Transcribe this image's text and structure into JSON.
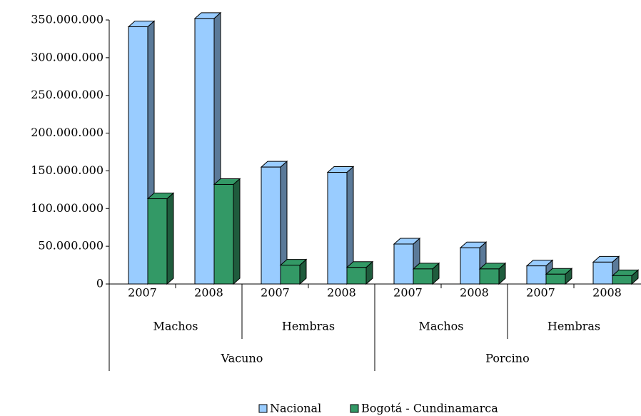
{
  "chart_data": {
    "type": "bar3d",
    "categories": [
      "2007",
      "2008",
      "2007",
      "2008",
      "2007",
      "2008",
      "2007",
      "2008"
    ],
    "category_levels": [
      [
        "Machos",
        "Hembras",
        "Machos",
        "Hembras"
      ],
      [
        "Vacuno",
        "Porcino"
      ]
    ],
    "series": [
      {
        "name": "Nacional",
        "color": "#99ccff",
        "side_color": "#5b7a99",
        "values": [
          341000000,
          352000000,
          155000000,
          148000000,
          53000000,
          48000000,
          24000000,
          29000000
        ]
      },
      {
        "name": "Bogotá - Cundinamarca",
        "color": "#339966",
        "side_color": "#1f5c3d",
        "values": [
          113000000,
          132000000,
          25000000,
          22000000,
          20000000,
          20000000,
          13000000,
          11000000
        ]
      }
    ],
    "ylim": [
      0,
      350000000
    ],
    "yticks": [
      0,
      {
        "value": 50000000,
        "label": "50.000.000"
      },
      {
        "value": 100000000,
        "label": "100.000.000"
      },
      {
        "value": 150000000,
        "label": "150.000.000"
      },
      {
        "value": 200000000,
        "label": "200.000.000"
      },
      {
        "value": 250000000,
        "label": "250.000.000"
      },
      {
        "value": 300000000,
        "label": "300.000.000"
      },
      {
        "value": 350000000,
        "label": "350.000.000"
      }
    ],
    "grid": false,
    "legend": "bottom"
  }
}
